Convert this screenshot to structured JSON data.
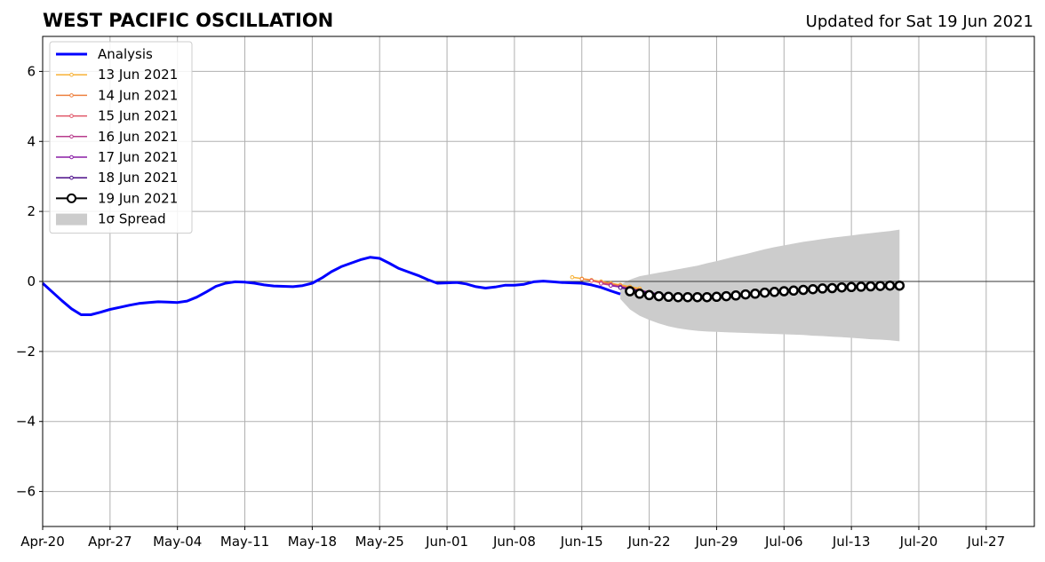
{
  "chart_data": {
    "type": "line",
    "title": "WEST PACIFIC OSCILLATION",
    "subtitle": "Updated for Sat 19 Jun 2021",
    "xlabel": "",
    "ylabel": "",
    "xlim": [
      "2021-04-20",
      "2021-08-01"
    ],
    "ylim": [
      -7,
      7
    ],
    "x_tick_labels": [
      "Apr-20",
      "Apr-27",
      "May-04",
      "May-11",
      "May-18",
      "May-25",
      "Jun-01",
      "Jun-08",
      "Jun-15",
      "Jun-22",
      "Jun-29",
      "Jul-06",
      "Jul-13",
      "Jul-20",
      "Jul-27"
    ],
    "y_tick_labels": [
      "−6",
      "−4",
      "−2",
      "0",
      "2",
      "4",
      "6"
    ],
    "grid": true,
    "legend_position": "upper-left",
    "analysis": {
      "name": "Analysis",
      "color": "#0000ff",
      "start": "2021-04-20",
      "values": [
        -0.05,
        -0.3,
        -0.55,
        -0.78,
        -0.95,
        -0.95,
        -0.88,
        -0.8,
        -0.74,
        -0.68,
        -0.63,
        -0.6,
        -0.58,
        -0.59,
        -0.6,
        -0.56,
        -0.45,
        -0.3,
        -0.14,
        -0.05,
        -0.01,
        -0.02,
        -0.05,
        -0.1,
        -0.13,
        -0.14,
        -0.15,
        -0.12,
        -0.05,
        0.1,
        0.28,
        0.42,
        0.52,
        0.62,
        0.69,
        0.66,
        0.52,
        0.37,
        0.27,
        0.17,
        0.05,
        -0.05,
        -0.04,
        -0.03,
        -0.07,
        -0.15,
        -0.19,
        -0.16,
        -0.11,
        -0.11,
        -0.08,
        -0.01,
        0.01,
        -0.01,
        -0.03,
        -0.04,
        -0.05,
        -0.1,
        -0.17,
        -0.27,
        -0.36
      ]
    },
    "forecasts": [
      {
        "name": "13 Jun 2021",
        "color": "#f7b237",
        "start": "2021-06-14",
        "values": [
          0.12,
          0.08,
          0.04,
          0.0,
          -0.05,
          -0.1,
          -0.15,
          -0.2
        ]
      },
      {
        "name": "14 Jun 2021",
        "color": "#ee8140",
        "start": "2021-06-15",
        "values": [
          0.07,
          0.03,
          -0.02,
          -0.07,
          -0.12,
          -0.18,
          -0.24
        ]
      },
      {
        "name": "15 Jun 2021",
        "color": "#e05668",
        "start": "2021-06-16",
        "values": [
          0.02,
          -0.04,
          -0.09,
          -0.15,
          -0.2,
          -0.26,
          -0.3
        ]
      },
      {
        "name": "16 Jun 2021",
        "color": "#b83c8c",
        "start": "2021-06-17",
        "values": [
          -0.06,
          -0.11,
          -0.16,
          -0.22,
          -0.28,
          -0.33,
          -0.37,
          -0.4,
          -0.42
        ]
      },
      {
        "name": "17 Jun 2021",
        "color": "#8a1ea6",
        "start": "2021-06-18",
        "values": [
          -0.12,
          -0.16,
          -0.21,
          -0.26,
          -0.31,
          -0.36,
          -0.4,
          -0.42
        ]
      },
      {
        "name": "18 Jun 2021",
        "color": "#4b0d88",
        "start": "2021-06-19",
        "values": [
          -0.18,
          -0.22,
          -0.27,
          -0.32,
          -0.37,
          -0.41,
          -0.44
        ]
      },
      {
        "name": "19 Jun 2021",
        "color": "#000000",
        "start": "2021-06-20",
        "values": [
          -0.28,
          -0.35,
          -0.39,
          -0.42,
          -0.44,
          -0.45,
          -0.45,
          -0.45,
          -0.45,
          -0.44,
          -0.42,
          -0.4,
          -0.37,
          -0.35,
          -0.32,
          -0.3,
          -0.28,
          -0.26,
          -0.24,
          -0.22,
          -0.2,
          -0.19,
          -0.17,
          -0.16,
          -0.15,
          -0.14,
          -0.13,
          -0.12,
          -0.12
        ]
      }
    ],
    "spread": {
      "name": "1σ Spread",
      "color": "#cccccc",
      "start": "2021-06-19",
      "upper": [
        -0.1,
        0.05,
        0.15,
        0.2,
        0.25,
        0.3,
        0.35,
        0.4,
        0.45,
        0.52,
        0.58,
        0.65,
        0.72,
        0.78,
        0.85,
        0.92,
        0.98,
        1.03,
        1.08,
        1.13,
        1.17,
        1.21,
        1.25,
        1.28,
        1.31,
        1.35,
        1.38,
        1.41,
        1.44,
        1.48
      ],
      "lower": [
        -0.5,
        -0.8,
        -0.98,
        -1.1,
        -1.2,
        -1.28,
        -1.34,
        -1.38,
        -1.41,
        -1.43,
        -1.44,
        -1.45,
        -1.46,
        -1.47,
        -1.48,
        -1.49,
        -1.5,
        -1.51,
        -1.52,
        -1.53,
        -1.55,
        -1.56,
        -1.58,
        -1.59,
        -1.61,
        -1.63,
        -1.65,
        -1.66,
        -1.68,
        -1.71
      ]
    }
  }
}
